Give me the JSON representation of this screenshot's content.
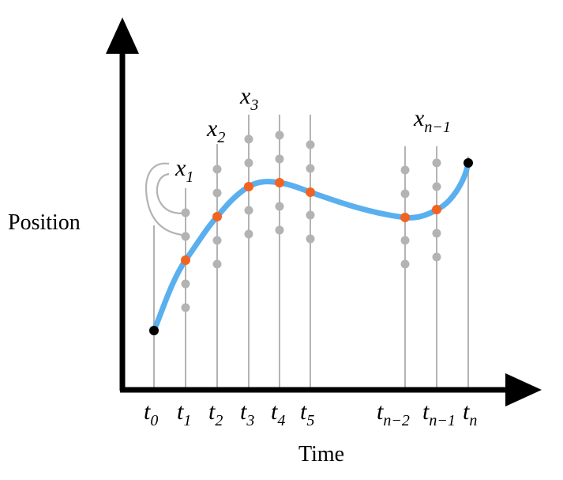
{
  "axes": {
    "y_label": "Position",
    "x_label": "Time"
  },
  "time_labels": [
    {
      "base": "t",
      "sub": "0"
    },
    {
      "base": "t",
      "sub": "1"
    },
    {
      "base": "t",
      "sub": "2"
    },
    {
      "base": "t",
      "sub": "3"
    },
    {
      "base": "t",
      "sub": "4"
    },
    {
      "base": "t",
      "sub": "5"
    },
    {
      "base": "t",
      "sub": "n−2"
    },
    {
      "base": "t",
      "sub": "n−1"
    },
    {
      "base": "t",
      "sub": "n"
    }
  ],
  "position_labels": [
    {
      "base": "x",
      "sub": "1"
    },
    {
      "base": "x",
      "sub": "2"
    },
    {
      "base": "x",
      "sub": "3"
    },
    {
      "base": "x",
      "sub": "n−1"
    }
  ],
  "colors": {
    "axis": "#000000",
    "grid": "#b3b3b3",
    "candidate": "#b3b3b3",
    "trajectory": "#5aafef",
    "selected": "#f26322",
    "endpoint": "#000000",
    "bracket": "#b3b3b3"
  }
}
